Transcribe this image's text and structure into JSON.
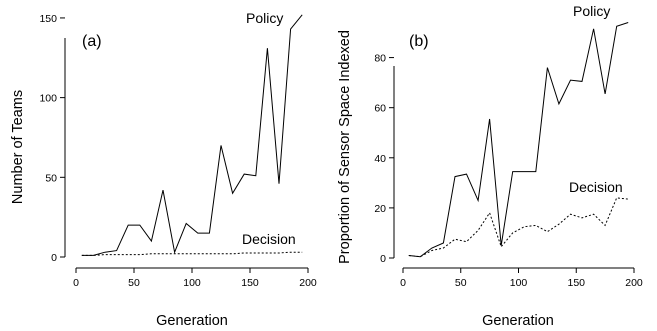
{
  "chart_data": [
    {
      "panel": "(a)",
      "type": "line",
      "xlabel": "Generation",
      "ylabel": "Number of Teams",
      "xlim": [
        0,
        200
      ],
      "ylim": [
        0,
        160
      ],
      "xticks": [
        0,
        50,
        100,
        150,
        200
      ],
      "yticks": [
        0,
        50,
        100,
        150
      ],
      "grid": false,
      "legend": "none",
      "series": [
        {
          "name": "Policy",
          "style": "solid",
          "x": [
            5,
            15,
            25,
            35,
            45,
            55,
            65,
            75,
            85,
            95,
            105,
            115,
            125,
            135,
            145,
            155,
            165,
            175,
            185,
            195
          ],
          "y": [
            1,
            1,
            3,
            4,
            20,
            20,
            10,
            42,
            3,
            21,
            15,
            15,
            70,
            40,
            52,
            51,
            131,
            46,
            143,
            152
          ]
        },
        {
          "name": "Decision",
          "style": "dotted",
          "x": [
            5,
            15,
            25,
            35,
            45,
            55,
            65,
            75,
            85,
            95,
            105,
            115,
            125,
            135,
            145,
            155,
            165,
            175,
            185,
            195
          ],
          "y": [
            1,
            1,
            1.5,
            1.5,
            1.5,
            1.5,
            2,
            2,
            2,
            2,
            2,
            2,
            2,
            2,
            2.5,
            2.5,
            2.5,
            2.5,
            3,
            3
          ]
        }
      ]
    },
    {
      "panel": "(b)",
      "type": "line",
      "xlabel": "Generation",
      "ylabel": "Proportion of Sensor Space Indexed",
      "xlim": [
        0,
        200
      ],
      "ylim": [
        0,
        95
      ],
      "xticks": [
        0,
        50,
        100,
        150,
        200
      ],
      "yticks": [
        0,
        20,
        40,
        60,
        80
      ],
      "grid": false,
      "legend": "none",
      "series": [
        {
          "name": "Policy",
          "style": "solid",
          "x": [
            5,
            15,
            25,
            35,
            45,
            55,
            65,
            75,
            85,
            95,
            105,
            115,
            125,
            135,
            145,
            155,
            165,
            175,
            185,
            195
          ],
          "y": [
            1,
            0.5,
            4,
            6,
            32.5,
            33.5,
            23,
            55.5,
            5,
            34.5,
            34.5,
            34.5,
            76,
            61.5,
            71,
            70.5,
            91.5,
            65.5,
            92.5,
            94
          ]
        },
        {
          "name": "Decision",
          "style": "dotted",
          "x": [
            5,
            15,
            25,
            35,
            45,
            55,
            65,
            75,
            85,
            95,
            105,
            115,
            125,
            135,
            145,
            155,
            165,
            175,
            185,
            195
          ],
          "y": [
            1,
            0.5,
            3,
            4,
            7.5,
            6.5,
            11,
            18,
            4.5,
            10,
            12.5,
            13,
            10.5,
            13.5,
            17.5,
            16,
            17.5,
            13,
            24,
            23.5
          ]
        }
      ]
    }
  ]
}
